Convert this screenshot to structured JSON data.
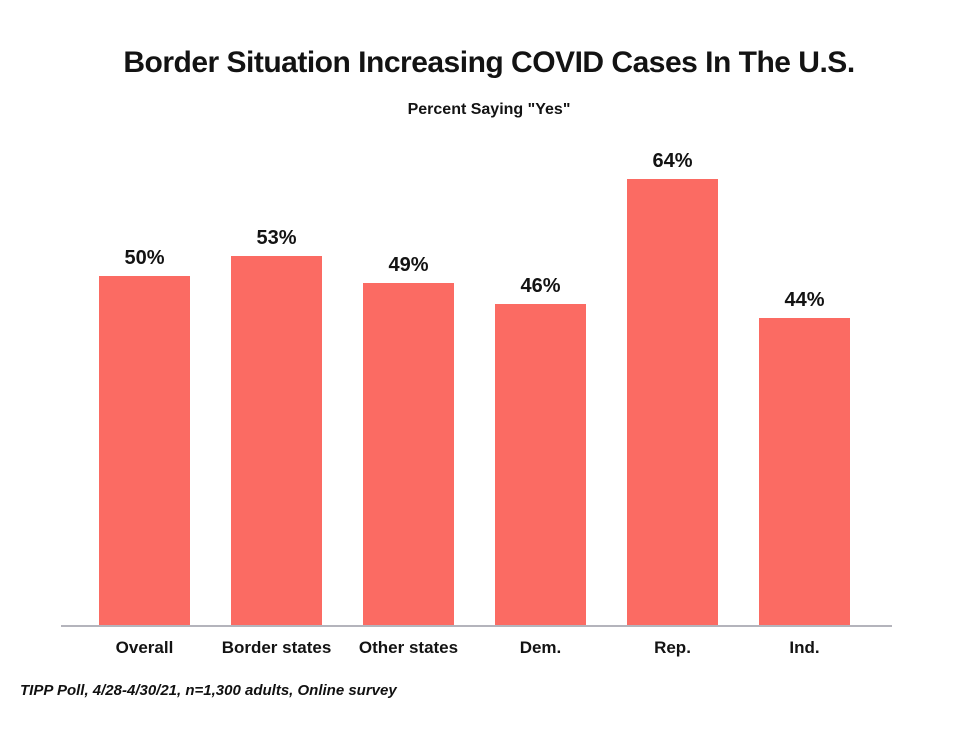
{
  "chart_data": {
    "type": "bar",
    "title": "Border Situation Increasing COVID Cases In The U.S.",
    "subtitle": "Percent Saying \"Yes\"",
    "categories": [
      "Overall",
      "Border states",
      "Other states",
      "Dem.",
      "Rep.",
      "Ind."
    ],
    "values": [
      50,
      53,
      49,
      46,
      64,
      44
    ],
    "value_labels": [
      "50%",
      "53%",
      "49%",
      "46%",
      "64%",
      "44%"
    ],
    "xlabel": "",
    "ylabel": "",
    "ylim": [
      0,
      70
    ],
    "grid": false,
    "legend": false,
    "bar_color": "#FB6B63",
    "axis_line_color": "#b4b4bc",
    "text_color": "#131313",
    "source_note": "TIPP Poll, 4/28-4/30/21, n=1,300 adults, Online survey"
  }
}
